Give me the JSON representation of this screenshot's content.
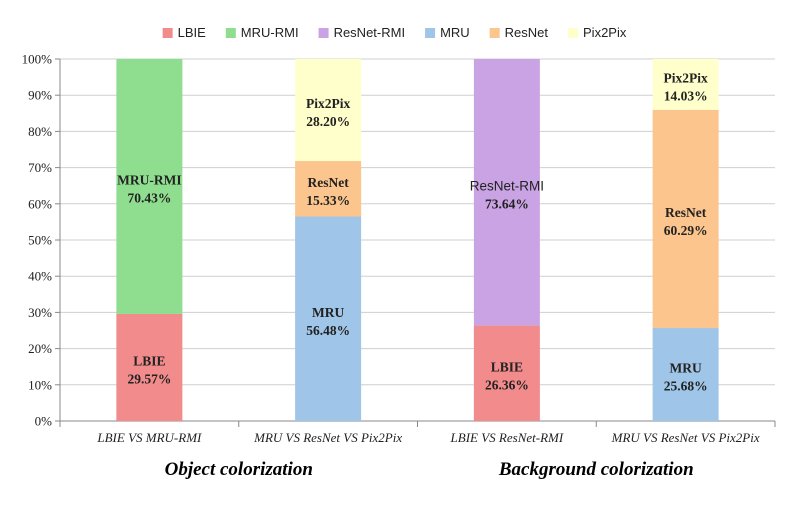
{
  "chart_data": {
    "type": "bar",
    "stacked": true,
    "percent": true,
    "title": "",
    "xlabel": "",
    "ylabel": "",
    "ylim": [
      0,
      100
    ],
    "yticks": [
      "0%",
      "10%",
      "20%",
      "30%",
      "40%",
      "50%",
      "60%",
      "70%",
      "80%",
      "90%",
      "100%"
    ],
    "grid": true,
    "legend_position": "top",
    "legend": [
      {
        "name": "LBIE",
        "color": "#f28b8b"
      },
      {
        "name": "MRU-RMI",
        "color": "#8fde8f"
      },
      {
        "name": "ResNet-RMI",
        "color": "#c9a3e3"
      },
      {
        "name": "MRU",
        "color": "#9fc5e8"
      },
      {
        "name": "ResNet",
        "color": "#fbc58d"
      },
      {
        "name": "Pix2Pix",
        "color": "#ffffcc"
      }
    ],
    "categories": [
      "LBIE VS MRU-RMI",
      "MRU VS ResNet VS Pix2Pix",
      "LBIE VS ResNet-RMI",
      "MRU VS ResNet VS Pix2Pix"
    ],
    "bars": [
      {
        "category": "LBIE VS MRU-RMI",
        "segments": [
          {
            "series": "LBIE",
            "value": 29.57,
            "label_name": "LBIE",
            "label_value": "29.57%"
          },
          {
            "series": "MRU-RMI",
            "value": 70.43,
            "label_name": "MRU-RMI",
            "label_value": "70.43%"
          }
        ]
      },
      {
        "category": "MRU VS ResNet VS Pix2Pix",
        "segments": [
          {
            "series": "MRU",
            "value": 56.48,
            "label_name": "MRU",
            "label_value": "56.48%"
          },
          {
            "series": "ResNet",
            "value": 15.33,
            "label_name": "ResNet",
            "label_value": "15.33%"
          },
          {
            "series": "Pix2Pix",
            "value": 28.2,
            "label_name": "Pix2Pix",
            "label_value": "28.20%"
          }
        ]
      },
      {
        "category": "LBIE VS ResNet-RMI",
        "segments": [
          {
            "series": "LBIE",
            "value": 26.36,
            "label_name": "LBIE",
            "label_value": "26.36%"
          },
          {
            "series": "ResNet-RMI",
            "value": 73.64,
            "label_name": "ResNet-RMI",
            "label_value": "73.64%"
          }
        ]
      },
      {
        "category": "MRU VS ResNet VS Pix2Pix",
        "segments": [
          {
            "series": "MRU",
            "value": 25.68,
            "label_name": "MRU",
            "label_value": "25.68%"
          },
          {
            "series": "ResNet",
            "value": 60.29,
            "label_name": "ResNet",
            "label_value": "60.29%"
          },
          {
            "series": "Pix2Pix",
            "value": 14.03,
            "label_name": "Pix2Pix",
            "label_value": "14.03%"
          }
        ]
      }
    ],
    "groups": [
      {
        "label": "Object colorization",
        "categories": [
          0,
          1
        ]
      },
      {
        "label": "Background colorization",
        "categories": [
          2,
          3
        ]
      }
    ]
  }
}
